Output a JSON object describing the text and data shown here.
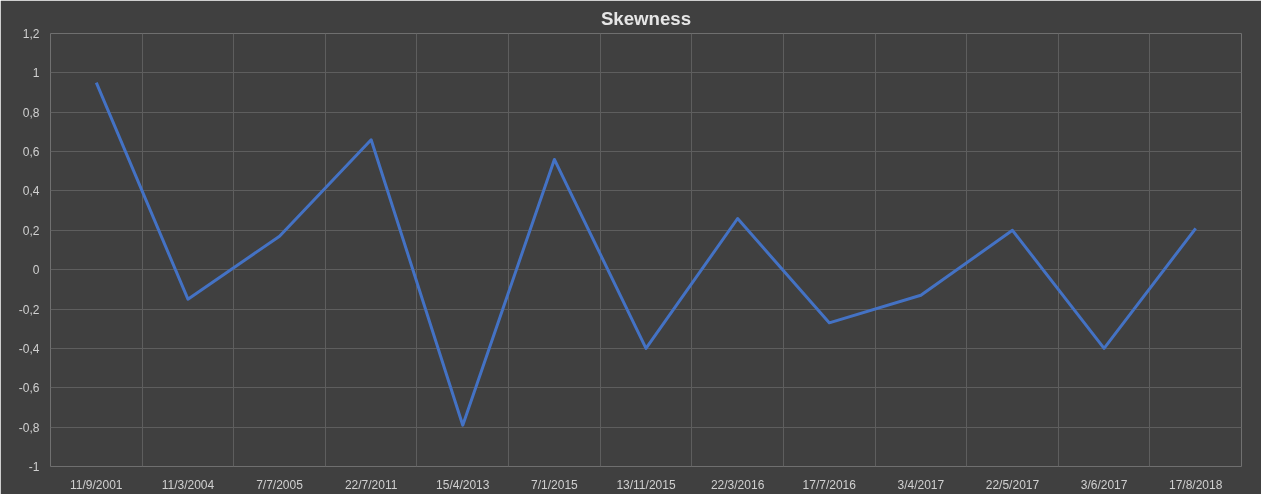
{
  "chart_data": {
    "type": "line",
    "title": "Skewness",
    "categories": [
      "11/9/2001",
      "11/3/2004",
      "7/7/2005",
      "22/7/2011",
      "15/4/2013",
      "7/1/2015",
      "13/11/2015",
      "22/3/2016",
      "17/7/2016",
      "3/4/2017",
      "22/5/2017",
      "3/6/2017",
      "17/8/2018"
    ],
    "series": [
      {
        "color": "#4472c4",
        "values": [
          0.95,
          -0.15,
          0.17,
          0.66,
          -0.79,
          0.56,
          -0.4,
          0.26,
          -0.27,
          -0.13,
          0.2,
          -0.4,
          0.21
        ]
      }
    ],
    "ylim": [
      -1,
      1.2
    ],
    "yticks": [
      {
        "value": -1,
        "label": "-1"
      },
      {
        "value": -0.8,
        "label": "-0,8"
      },
      {
        "value": -0.6,
        "label": "-0,6"
      },
      {
        "value": -0.4,
        "label": "-0,4"
      },
      {
        "value": -0.2,
        "label": "-0,2"
      },
      {
        "value": 0,
        "label": "0"
      },
      {
        "value": 0.2,
        "label": "0,2"
      },
      {
        "value": 0.4,
        "label": "0,4"
      },
      {
        "value": 0.6,
        "label": "0,6"
      },
      {
        "value": 0.8,
        "label": "0,8"
      },
      {
        "value": 1,
        "label": "1"
      },
      {
        "value": 1.2,
        "label": "1,2"
      }
    ],
    "grid": true,
    "marker": "none",
    "line_style": "solid"
  }
}
